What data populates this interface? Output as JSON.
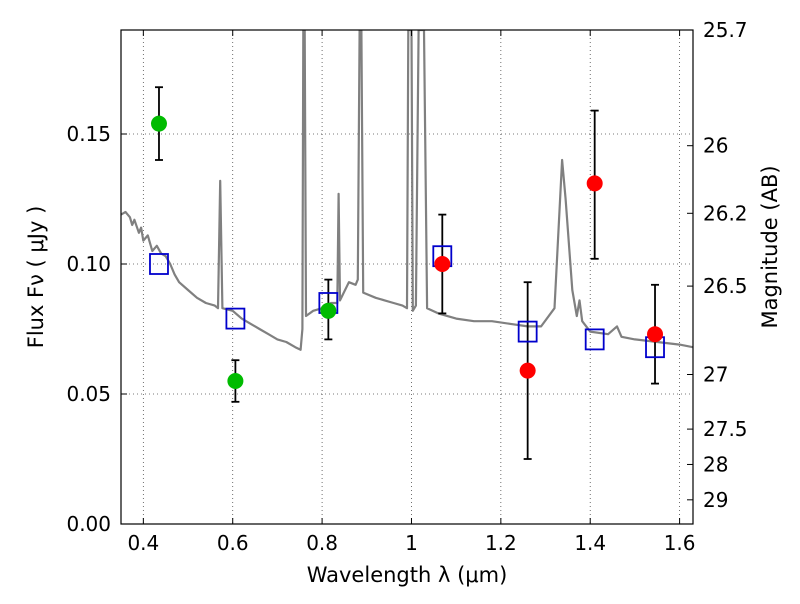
{
  "chart_data": {
    "type": "scatter",
    "xlabel": "Wavelength  λ (μm)",
    "ylabel": "Flux  Fν  ( μJy )",
    "ylabel_right": "Magnitude (AB)",
    "xlim": [
      0.35,
      1.63
    ],
    "ylim": [
      0.0,
      0.19
    ],
    "grid": true,
    "x_ticks": [
      0.4,
      0.6,
      0.8,
      1.0,
      1.2,
      1.4,
      1.6
    ],
    "x_tick_labels": [
      "0.4",
      "0.6",
      "0.8",
      "1",
      "1.2",
      "1.4",
      "1.6"
    ],
    "y_ticks": [
      0.0,
      0.05,
      0.1,
      0.15
    ],
    "y_tick_labels": [
      "0.00",
      "0.05",
      "0.10",
      "0.15"
    ],
    "right_ticks": [
      {
        "label": "25.7",
        "flux": 0.19
      },
      {
        "label": "26",
        "flux": 0.1455
      },
      {
        "label": "26.2",
        "flux": 0.1195
      },
      {
        "label": "26.5",
        "flux": 0.0915
      },
      {
        "label": "27",
        "flux": 0.0575
      },
      {
        "label": "27.5",
        "flux": 0.0365
      },
      {
        "label": "28",
        "flux": 0.0229
      },
      {
        "label": "29",
        "flux": 0.0093
      }
    ],
    "series": [
      {
        "name": "",
        "kind": "errorbar-green",
        "color": "#00bb00",
        "points": [
          {
            "x": 0.435,
            "y": 0.154,
            "lo": 0.14,
            "hi": 0.168
          },
          {
            "x": 0.606,
            "y": 0.055,
            "lo": 0.047,
            "hi": 0.063
          },
          {
            "x": 0.814,
            "y": 0.082,
            "lo": 0.071,
            "hi": 0.094
          }
        ]
      },
      {
        "name": "",
        "kind": "errorbar-red",
        "color": "#ff0000",
        "points": [
          {
            "x": 1.069,
            "y": 0.1,
            "lo": 0.081,
            "hi": 0.119
          },
          {
            "x": 1.26,
            "y": 0.059,
            "lo": 0.025,
            "hi": 0.093
          },
          {
            "x": 1.41,
            "y": 0.131,
            "lo": 0.102,
            "hi": 0.159
          },
          {
            "x": 1.545,
            "y": 0.073,
            "lo": 0.054,
            "hi": 0.092
          }
        ]
      },
      {
        "name": "",
        "kind": "model-squares",
        "color": "#0000cc",
        "points": [
          {
            "x": 0.435,
            "y": 0.1
          },
          {
            "x": 0.606,
            "y": 0.079
          },
          {
            "x": 0.814,
            "y": 0.085
          },
          {
            "x": 1.069,
            "y": 0.103
          },
          {
            "x": 1.26,
            "y": 0.074
          },
          {
            "x": 1.41,
            "y": 0.071
          },
          {
            "x": 1.545,
            "y": 0.068
          }
        ]
      },
      {
        "name": "",
        "kind": "sed-line",
        "color": "#808080",
        "points": [
          [
            0.35,
            0.119
          ],
          [
            0.36,
            0.12
          ],
          [
            0.37,
            0.118
          ],
          [
            0.375,
            0.115
          ],
          [
            0.38,
            0.117
          ],
          [
            0.39,
            0.112
          ],
          [
            0.395,
            0.114
          ],
          [
            0.4,
            0.109
          ],
          [
            0.41,
            0.111
          ],
          [
            0.42,
            0.105
          ],
          [
            0.43,
            0.107
          ],
          [
            0.44,
            0.104
          ],
          [
            0.45,
            0.103
          ],
          [
            0.46,
            0.1
          ],
          [
            0.47,
            0.096
          ],
          [
            0.48,
            0.093
          ],
          [
            0.5,
            0.09
          ],
          [
            0.52,
            0.087
          ],
          [
            0.54,
            0.085
          ],
          [
            0.56,
            0.084
          ],
          [
            0.567,
            0.083
          ],
          [
            0.572,
            0.132
          ],
          [
            0.577,
            0.083
          ],
          [
            0.6,
            0.082
          ],
          [
            0.62,
            0.079
          ],
          [
            0.64,
            0.077
          ],
          [
            0.66,
            0.075
          ],
          [
            0.68,
            0.073
          ],
          [
            0.7,
            0.071
          ],
          [
            0.72,
            0.07
          ],
          [
            0.74,
            0.068
          ],
          [
            0.752,
            0.067
          ],
          [
            0.756,
            0.075
          ],
          [
            0.758,
            0.19
          ],
          [
            0.761,
            0.19
          ],
          [
            0.764,
            0.08
          ],
          [
            0.78,
            0.082
          ],
          [
            0.8,
            0.083
          ],
          [
            0.82,
            0.085
          ],
          [
            0.834,
            0.085
          ],
          [
            0.837,
            0.127
          ],
          [
            0.84,
            0.086
          ],
          [
            0.86,
            0.093
          ],
          [
            0.875,
            0.092
          ],
          [
            0.88,
            0.094
          ],
          [
            0.884,
            0.19
          ],
          [
            0.888,
            0.19
          ],
          [
            0.892,
            0.089
          ],
          [
            0.92,
            0.087
          ],
          [
            0.94,
            0.086
          ],
          [
            0.96,
            0.085
          ],
          [
            0.98,
            0.084
          ],
          [
            0.99,
            0.083
          ],
          [
            0.993,
            0.19
          ],
          [
            1.0,
            0.19
          ],
          [
            1.003,
            0.082
          ],
          [
            1.01,
            0.084
          ],
          [
            1.016,
            0.19
          ],
          [
            1.028,
            0.19
          ],
          [
            1.035,
            0.083
          ],
          [
            1.06,
            0.081
          ],
          [
            1.1,
            0.079
          ],
          [
            1.14,
            0.078
          ],
          [
            1.18,
            0.078
          ],
          [
            1.22,
            0.077
          ],
          [
            1.26,
            0.076
          ],
          [
            1.29,
            0.076
          ],
          [
            1.32,
            0.083
          ],
          [
            1.337,
            0.14
          ],
          [
            1.345,
            0.125
          ],
          [
            1.36,
            0.09
          ],
          [
            1.37,
            0.08
          ],
          [
            1.376,
            0.086
          ],
          [
            1.382,
            0.078
          ],
          [
            1.4,
            0.074
          ],
          [
            1.44,
            0.073
          ],
          [
            1.46,
            0.076
          ],
          [
            1.47,
            0.072
          ],
          [
            1.5,
            0.071
          ],
          [
            1.55,
            0.07
          ],
          [
            1.6,
            0.069
          ],
          [
            1.63,
            0.068
          ]
        ]
      }
    ]
  }
}
